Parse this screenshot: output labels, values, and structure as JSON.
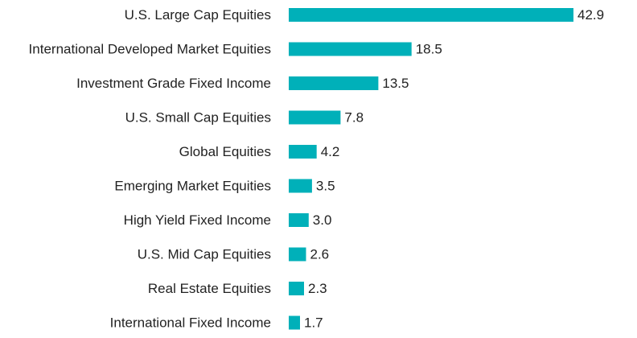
{
  "chart_data": {
    "type": "bar",
    "orientation": "horizontal",
    "title": "",
    "xlabel": "",
    "ylabel": "",
    "categories": [
      "U.S. Large Cap Equities",
      "International Developed Market Equities",
      "Investment Grade Fixed Income",
      "U.S. Small Cap Equities",
      "Global Equities",
      "Emerging Market Equities",
      "High Yield Fixed Income",
      "U.S. Mid Cap Equities",
      "Real Estate Equities",
      "International Fixed Income"
    ],
    "values": [
      42.9,
      18.5,
      13.5,
      7.8,
      4.2,
      3.5,
      3.0,
      2.6,
      2.3,
      1.7
    ],
    "value_labels": [
      "42.9",
      "18.5",
      "13.5",
      "7.8",
      "4.2",
      "3.5",
      "3.0",
      "2.6",
      "2.3",
      "1.7"
    ],
    "xlim": [
      0,
      42.9
    ],
    "grid": false,
    "legend": "none",
    "bar_color": "#00b0b9"
  }
}
